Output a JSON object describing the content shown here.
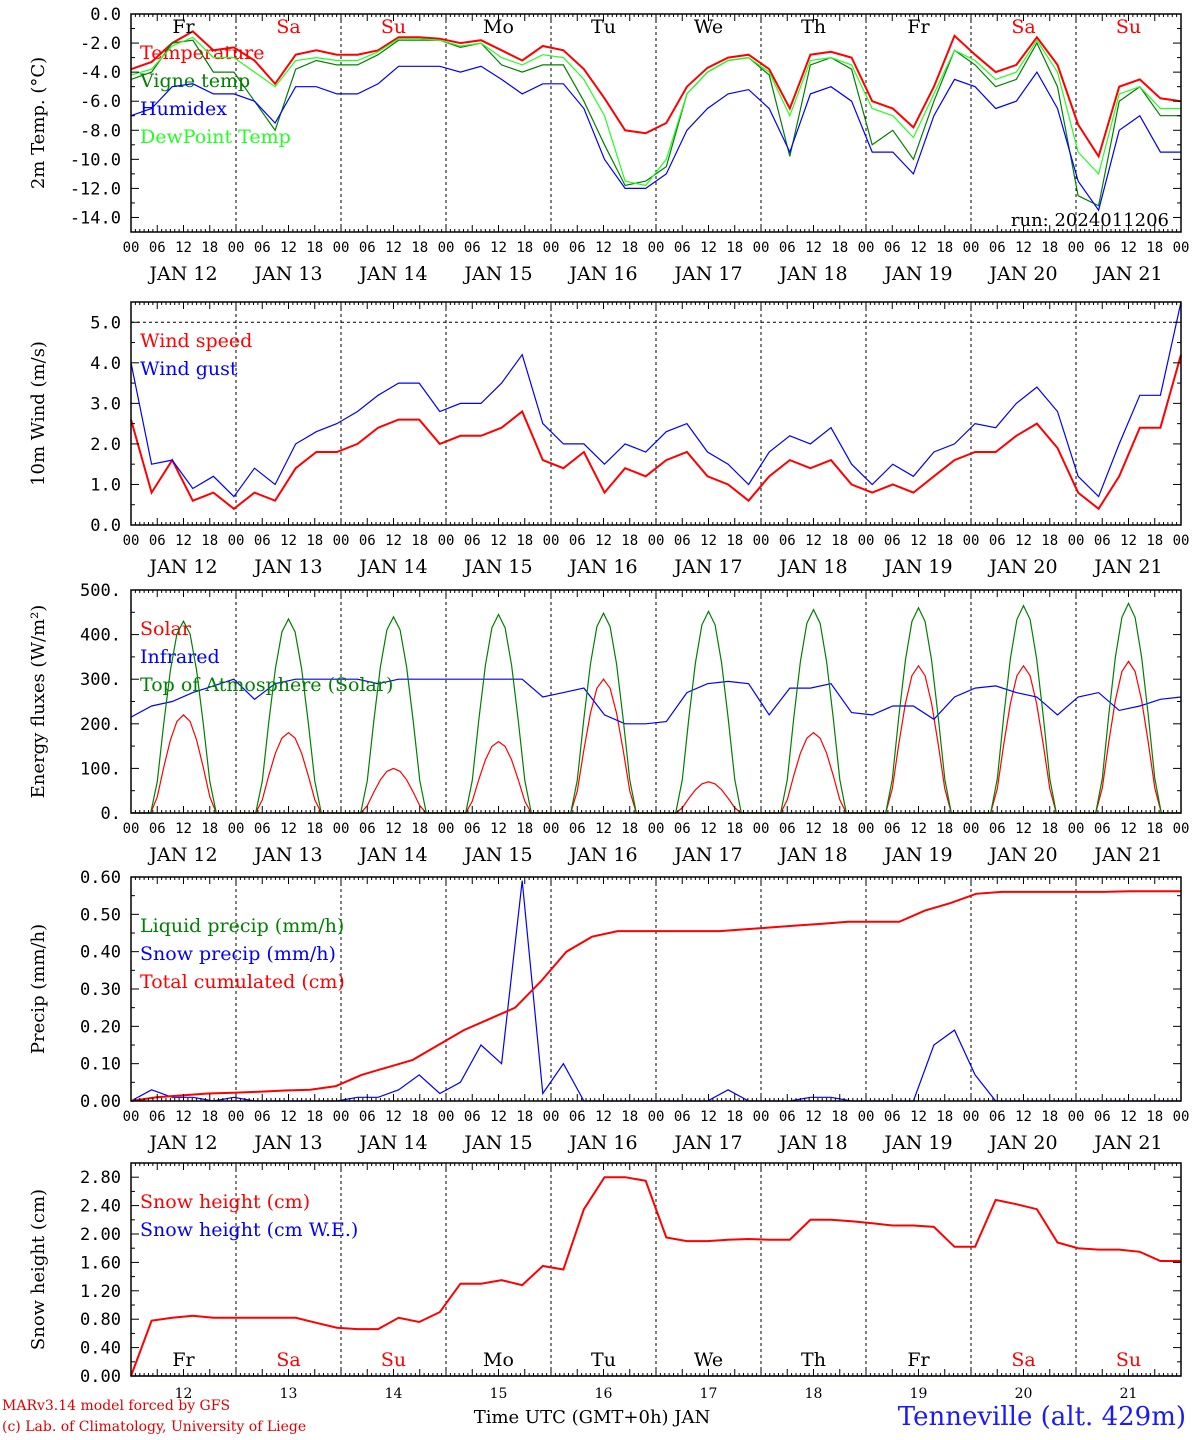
{
  "run_label": "run: 2024011206",
  "footer": {
    "credit_line1": "MARv3.14 model forced by GFS",
    "credit_line2": "(c) Lab. of Climatology, University of Liege",
    "station": "Tenneville (alt. 429m)",
    "xlabel": "Time UTC (GMT+0h) JAN"
  },
  "colors": {
    "red": "#ff0000",
    "green": "#008000",
    "blue": "#0000ff",
    "lightgreen": "#22ff22",
    "weekend": "#ff0000"
  },
  "days": [
    "JAN 12",
    "JAN 13",
    "JAN 14",
    "JAN 15",
    "JAN 16",
    "JAN 17",
    "JAN 18",
    "JAN 19",
    "JAN 20",
    "JAN 21"
  ],
  "day_numbers": [
    "12",
    "13",
    "14",
    "15",
    "16",
    "17",
    "18",
    "19",
    "20",
    "21"
  ],
  "weekdays": [
    "Fr",
    "Sa",
    "Su",
    "Mo",
    "Tu",
    "We",
    "Th",
    "Fr",
    "Sa",
    "Su"
  ],
  "weekend_flags": [
    false,
    true,
    true,
    false,
    false,
    false,
    false,
    false,
    true,
    true
  ],
  "hour_ticks": [
    "00",
    "06",
    "12",
    "18"
  ],
  "end_tick": "00",
  "chart_data": [
    {
      "type": "line",
      "ylabel": "2m Temp. (°C)",
      "ylim": [
        -15,
        0
      ],
      "yticks": [
        "0.0",
        "-2.0",
        "-4.0",
        "-6.0",
        "-8.0",
        "-10.0",
        "-12.0",
        "-14.0"
      ],
      "ytick_values": [
        0,
        -2,
        -4,
        -6,
        -8,
        -10,
        -12,
        -14
      ],
      "x_hours_step": 6,
      "series": [
        {
          "name": "Temperature",
          "color": "red",
          "values": [
            -3.8,
            -3.3,
            -2.0,
            -1.2,
            -2.5,
            -2.3,
            -3.2,
            -4.8,
            -2.8,
            -2.5,
            -2.8,
            -2.8,
            -2.5,
            -1.6,
            -1.6,
            -1.7,
            -2.0,
            -1.8,
            -2.5,
            -3.2,
            -2.2,
            -2.5,
            -3.8,
            -5.8,
            -8.0,
            -8.2,
            -7.5,
            -5.0,
            -3.7,
            -3.0,
            -2.8,
            -3.8,
            -6.5,
            -2.8,
            -2.6,
            -3.0,
            -6.0,
            -6.5,
            -7.8,
            -5.0,
            -1.5,
            -2.8,
            -4.0,
            -3.5,
            -1.6,
            -3.5,
            -7.6,
            -9.8,
            -5.0,
            -4.5,
            -5.8,
            -6.0
          ]
        },
        {
          "name": "Vigne temp",
          "color": "green",
          "values": [
            -4.5,
            -4.0,
            -2.0,
            -1.8,
            -4.0,
            -4.0,
            -6.0,
            -8.0,
            -3.8,
            -3.2,
            -3.5,
            -3.5,
            -2.8,
            -1.8,
            -1.8,
            -1.8,
            -2.3,
            -2.0,
            -3.5,
            -4.0,
            -3.5,
            -3.5,
            -6.0,
            -9.0,
            -11.8,
            -11.5,
            -10.5,
            -5.5,
            -4.0,
            -3.2,
            -3.0,
            -4.2,
            -9.8,
            -3.5,
            -3.0,
            -3.8,
            -9.0,
            -8.0,
            -10.0,
            -6.0,
            -2.5,
            -3.5,
            -5.0,
            -4.5,
            -2.0,
            -5.0,
            -12.5,
            -13.2,
            -6.0,
            -5.0,
            -7.0,
            -7.0
          ]
        },
        {
          "name": "Humidex",
          "color": "blue",
          "values": [
            -7.0,
            -6.5,
            -5.0,
            -4.8,
            -5.5,
            -5.5,
            -6.0,
            -7.5,
            -5.0,
            -5.0,
            -5.5,
            -5.5,
            -4.8,
            -3.6,
            -3.6,
            -3.6,
            -4.0,
            -3.6,
            -4.5,
            -5.5,
            -4.8,
            -4.8,
            -6.5,
            -10.0,
            -12.0,
            -12.0,
            -11.0,
            -8.0,
            -6.5,
            -5.5,
            -5.2,
            -6.5,
            -9.5,
            -5.5,
            -5.0,
            -6.0,
            -9.5,
            -9.5,
            -11.0,
            -7.0,
            -4.5,
            -5.0,
            -6.5,
            -6.0,
            -4.0,
            -6.5,
            -11.5,
            -13.5,
            -8.0,
            -7.0,
            -9.5,
            -9.5
          ]
        },
        {
          "name": "DewPoint Temp",
          "color": "lightgreen",
          "values": [
            -4.2,
            -3.8,
            -2.2,
            -1.6,
            -3.0,
            -3.0,
            -4.0,
            -5.0,
            -3.2,
            -3.0,
            -3.2,
            -3.2,
            -2.6,
            -1.7,
            -1.7,
            -1.8,
            -2.2,
            -2.0,
            -3.0,
            -3.5,
            -2.8,
            -3.0,
            -4.5,
            -7.0,
            -11.5,
            -11.8,
            -10.0,
            -5.5,
            -4.0,
            -3.2,
            -3.0,
            -4.0,
            -7.0,
            -3.2,
            -3.0,
            -3.5,
            -6.5,
            -7.0,
            -8.5,
            -5.5,
            -2.5,
            -3.2,
            -4.5,
            -4.0,
            -1.8,
            -4.0,
            -9.5,
            -11.0,
            -5.5,
            -5.0,
            -6.5,
            -6.5
          ]
        }
      ]
    },
    {
      "type": "line",
      "ylabel": "10m Wind (m/s)",
      "ylim": [
        0,
        5.5
      ],
      "yticks": [
        "0.0",
        "1.0",
        "2.0",
        "3.0",
        "4.0",
        "5.0"
      ],
      "ytick_values": [
        0,
        1,
        2,
        3,
        4,
        5
      ],
      "x_hours_step": 6,
      "series": [
        {
          "name": "Wind speed",
          "color": "red",
          "values": [
            2.6,
            0.8,
            1.6,
            0.6,
            0.8,
            0.4,
            0.8,
            0.6,
            1.4,
            1.8,
            1.8,
            2.0,
            2.4,
            2.6,
            2.6,
            2.0,
            2.2,
            2.2,
            2.4,
            2.8,
            1.6,
            1.4,
            1.8,
            0.8,
            1.4,
            1.2,
            1.6,
            1.8,
            1.2,
            1.0,
            0.6,
            1.2,
            1.6,
            1.4,
            1.6,
            1.0,
            0.8,
            1.0,
            0.8,
            1.2,
            1.6,
            1.8,
            1.8,
            2.2,
            2.5,
            1.9,
            0.8,
            0.4,
            1.2,
            2.4,
            2.4,
            4.2
          ]
        },
        {
          "name": "Wind gust",
          "color": "blue",
          "values": [
            4.0,
            1.5,
            1.6,
            0.9,
            1.2,
            0.7,
            1.4,
            1.0,
            2.0,
            2.3,
            2.5,
            2.8,
            3.2,
            3.5,
            3.5,
            2.8,
            3.0,
            3.0,
            3.5,
            4.2,
            2.5,
            2.0,
            2.0,
            1.5,
            2.0,
            1.8,
            2.3,
            2.5,
            1.8,
            1.5,
            1.0,
            1.8,
            2.2,
            2.0,
            2.4,
            1.5,
            1.0,
            1.5,
            1.2,
            1.8,
            2.0,
            2.5,
            2.4,
            3.0,
            3.4,
            2.8,
            1.2,
            0.7,
            2.0,
            3.2,
            3.2,
            5.5
          ]
        }
      ]
    },
    {
      "type": "line",
      "ylabel": "Energy fluxes (W/m²)",
      "ylim": [
        0,
        500
      ],
      "yticks": [
        "0.",
        "100.",
        "200.",
        "300.",
        "400.",
        "500."
      ],
      "ytick_values": [
        0,
        100,
        200,
        300,
        400,
        500
      ],
      "x_hours_step": 6,
      "series": [
        {
          "name": "Solar",
          "color": "red",
          "peak_hour": 12,
          "values": [
            220,
            180,
            100,
            160,
            300,
            70,
            180,
            330,
            330,
            340
          ]
        },
        {
          "name": "Infrared",
          "color": "blue",
          "values": [
            215,
            240,
            250,
            270,
            285,
            300,
            255,
            290,
            300,
            300,
            300,
            300,
            290,
            300,
            300,
            300,
            300,
            300,
            300,
            300,
            260,
            270,
            280,
            220,
            200,
            200,
            205,
            270,
            290,
            295,
            290,
            220,
            280,
            280,
            290,
            225,
            220,
            240,
            240,
            210,
            260,
            280,
            285,
            270,
            260,
            220,
            260,
            270,
            230,
            240,
            255,
            260
          ]
        },
        {
          "name": "Top of Atmosphere (Solar)",
          "color": "green",
          "peak_hour": 12,
          "values": [
            430,
            435,
            440,
            445,
            448,
            452,
            456,
            460,
            465,
            470
          ]
        }
      ]
    },
    {
      "type": "line",
      "ylabel": "Precip (mm/h)",
      "ylim": [
        0,
        0.6
      ],
      "yticks": [
        "0.00",
        "0.10",
        "0.20",
        "0.30",
        "0.40",
        "0.50",
        "0.60"
      ],
      "ytick_values": [
        0,
        0.1,
        0.2,
        0.3,
        0.4,
        0.5,
        0.6
      ],
      "x_hours_step": 6,
      "series": [
        {
          "name": "Liquid precip (mm/h)",
          "color": "green",
          "values": []
        },
        {
          "name": "Snow precip (mm/h)",
          "color": "blue",
          "values": [
            0,
            0.03,
            0.01,
            0.01,
            0.0,
            0.01,
            0.0,
            0.0,
            0.0,
            0.0,
            0.0,
            0.01,
            0.01,
            0.03,
            0.07,
            0.02,
            0.05,
            0.15,
            0.1,
            0.59,
            0.02,
            0.1,
            0.0,
            0.0,
            0.0,
            0.0,
            0.0,
            0.0,
            0.0,
            0.03,
            0.0,
            0.0,
            0.0,
            0.01,
            0.01,
            0.0,
            0.0,
            0.0,
            0.0,
            0.15,
            0.19,
            0.07,
            0.0,
            0.0,
            0.0,
            0.0,
            0.0,
            0.0,
            0.0,
            0.0,
            0.0,
            0.0
          ]
        },
        {
          "name": "Total cumulated (cm)",
          "color": "red",
          "values": [
            0.0,
            0.01,
            0.015,
            0.02,
            0.022,
            0.025,
            0.028,
            0.03,
            0.04,
            0.07,
            0.09,
            0.11,
            0.15,
            0.19,
            0.22,
            0.25,
            0.32,
            0.4,
            0.44,
            0.455,
            0.455,
            0.455,
            0.455,
            0.455,
            0.46,
            0.465,
            0.47,
            0.475,
            0.48,
            0.48,
            0.48,
            0.51,
            0.53,
            0.555,
            0.56,
            0.56,
            0.56,
            0.56,
            0.56,
            0.562,
            0.562,
            0.562
          ]
        }
      ]
    },
    {
      "type": "line",
      "ylabel": "Snow height (cm)",
      "ylim": [
        0,
        3.0
      ],
      "yticks": [
        "0.00",
        "0.40",
        "0.80",
        "1.20",
        "1.60",
        "2.00",
        "2.40",
        "2.80"
      ],
      "ytick_values": [
        0,
        0.4,
        0.8,
        1.2,
        1.6,
        2.0,
        2.4,
        2.8
      ],
      "x_hours_step": 6,
      "series": [
        {
          "name": "Snow height (cm)",
          "color": "red",
          "values": [
            0.0,
            0.78,
            0.82,
            0.85,
            0.82,
            0.82,
            0.82,
            0.82,
            0.82,
            0.75,
            0.68,
            0.66,
            0.66,
            0.82,
            0.76,
            0.9,
            1.3,
            1.3,
            1.35,
            1.28,
            1.55,
            1.5,
            2.35,
            2.8,
            2.8,
            2.75,
            1.95,
            1.9,
            1.9,
            1.92,
            1.93,
            1.92,
            1.92,
            2.2,
            2.2,
            2.18,
            2.15,
            2.12,
            2.12,
            2.1,
            1.82,
            1.82,
            2.48,
            2.42,
            2.35,
            1.88,
            1.8,
            1.78,
            1.78,
            1.75,
            1.62,
            1.62
          ]
        },
        {
          "name": "Snow height (cm W.E.)",
          "color": "blue",
          "values": [
            0,
            0,
            0,
            0,
            0,
            0,
            0,
            0,
            0,
            0,
            0,
            0,
            0,
            0,
            0,
            0,
            0,
            0,
            0,
            0,
            0,
            0,
            0,
            0,
            0,
            0,
            0,
            0,
            0,
            0,
            0,
            0,
            0,
            0,
            0,
            0,
            0,
            0,
            0,
            0,
            0,
            0,
            0,
            0,
            0,
            0,
            0,
            0,
            0,
            0,
            0,
            0
          ]
        }
      ]
    }
  ]
}
